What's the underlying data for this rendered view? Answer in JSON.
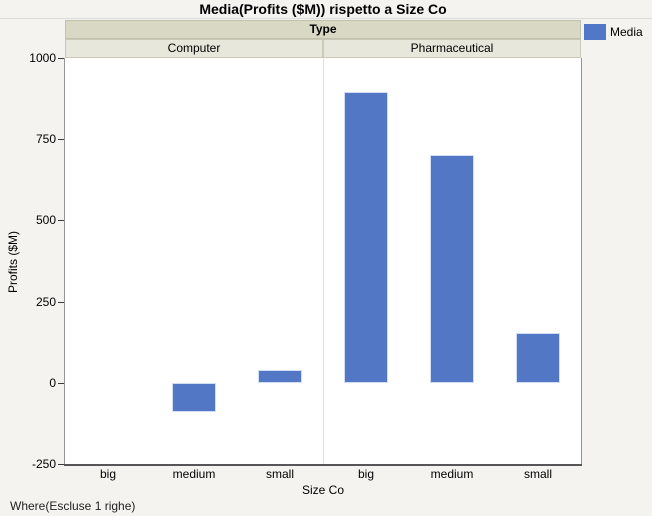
{
  "title": "Media(Profits ($M)) rispetto a Size Co",
  "legend": {
    "label": "Media",
    "swatch_color": "#5277c5"
  },
  "footer": "Where(Escluse 1 righe)",
  "chart_data": {
    "type": "bar",
    "title": "Media(Profits ($M)) rispetto a Size Co",
    "series_name": "Media",
    "group_header": "Type",
    "groups": [
      {
        "label": "Computer",
        "categories": [
          "big",
          "medium",
          "small"
        ],
        "values": [
          null,
          -90,
          40
        ]
      },
      {
        "label": "Pharmaceutical",
        "categories": [
          "big",
          "medium",
          "small"
        ],
        "values": [
          895,
          700,
          155
        ]
      }
    ],
    "xlabel": "Size Co",
    "ylabel": "Profits ($M)",
    "ylim": [
      -250,
      1000
    ],
    "yticks": [
      1000,
      750,
      500,
      250,
      0,
      -250
    ],
    "bar_color": "#5277c5",
    "grid": false,
    "legend_position": "top-right"
  }
}
